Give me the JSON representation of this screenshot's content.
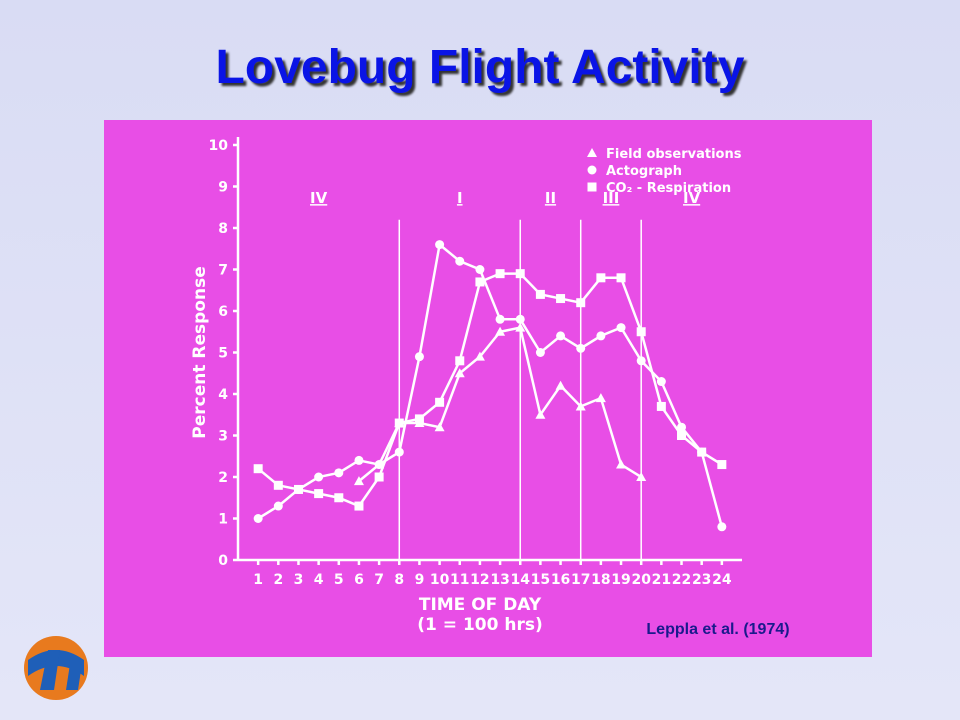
{
  "slide": {
    "title": "Lovebug Flight Activity",
    "citation": "Leppla et al. (1974)"
  },
  "chart_data": {
    "type": "line",
    "ylabel": "Percent Response",
    "xlabel": "TIME OF DAY",
    "xlabel_note": "(1 = 100 hrs)",
    "x": [
      1,
      2,
      3,
      4,
      5,
      6,
      7,
      8,
      9,
      10,
      11,
      12,
      13,
      14,
      15,
      16,
      17,
      18,
      19,
      20,
      21,
      22,
      23,
      24
    ],
    "xlim": [
      0,
      25
    ],
    "xticks": [
      1,
      2,
      3,
      4,
      5,
      6,
      7,
      8,
      9,
      10,
      11,
      12,
      13,
      14,
      15,
      16,
      17,
      18,
      19,
      20,
      21,
      22,
      23,
      24
    ],
    "ylim": [
      0,
      10
    ],
    "yticks": [
      0,
      1,
      2,
      3,
      4,
      5,
      6,
      7,
      8,
      9,
      10
    ],
    "phase_boundaries": [
      8,
      14,
      17,
      20
    ],
    "phases": [
      "IV",
      "I",
      "II",
      "III",
      "IV"
    ],
    "series": [
      {
        "name": "Field observations",
        "color": "#ffffff",
        "marker": "triangle",
        "values": [
          null,
          null,
          null,
          null,
          null,
          1.9,
          2.3,
          3.3,
          3.3,
          3.2,
          4.5,
          4.9,
          5.5,
          5.6,
          3.5,
          4.2,
          3.7,
          3.9,
          2.3,
          2.0,
          null,
          null,
          null,
          null
        ]
      },
      {
        "name": "Actograph",
        "color": "#ffffff",
        "marker": "circle",
        "values": [
          1.0,
          1.3,
          1.7,
          2.0,
          2.1,
          2.4,
          2.3,
          2.6,
          4.9,
          7.6,
          7.2,
          7.0,
          5.8,
          5.8,
          5.0,
          5.4,
          5.1,
          5.4,
          5.6,
          4.8,
          4.3,
          3.2,
          2.6,
          0.8
        ]
      },
      {
        "name": "CO₂ - Respiration",
        "color": "#ffffff",
        "marker": "square",
        "values": [
          2.2,
          1.8,
          1.7,
          1.6,
          1.5,
          1.3,
          2.0,
          3.3,
          3.4,
          3.8,
          4.8,
          6.7,
          6.9,
          6.9,
          6.4,
          6.3,
          6.2,
          6.8,
          6.8,
          5.5,
          3.7,
          3.0,
          2.6,
          2.3
        ]
      }
    ]
  }
}
